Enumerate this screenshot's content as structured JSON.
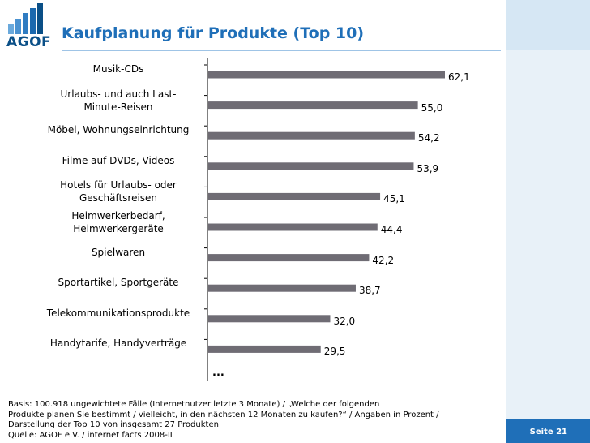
{
  "header": {
    "logo_text": "AGOF",
    "title": "Kaufplanung für Produkte (Top 10)"
  },
  "chart_data": {
    "type": "bar",
    "orientation": "horizontal",
    "categories": [
      "Musik-CDs",
      "Urlaubs- und auch Last-Minute-Reisen",
      "Möbel, Wohnungseinrichtung",
      "Filme auf DVDs, Videos",
      "Hotels für Urlaubs- oder Geschäftsreisen",
      "Heimwerkerbedarf, Heimwerkergeräte",
      "Spielwaren",
      "Sportartikel, Sportgeräte",
      "Telekommunikationsprodukte",
      "Handytarife, Handyverträge"
    ],
    "category_lines": [
      [
        "Musik-CDs"
      ],
      [
        "Urlaubs- und auch Last-",
        "Minute-Reisen"
      ],
      [
        "Möbel, Wohnungseinrichtung"
      ],
      [
        "Filme auf DVDs, Videos"
      ],
      [
        "Hotels für Urlaubs- oder",
        "Geschäftsreisen"
      ],
      [
        "Heimwerkerbedarf,",
        "Heimwerkergeräte"
      ],
      [
        "Spielwaren"
      ],
      [
        "Sportartikel, Sportgeräte"
      ],
      [
        "Telekommunikationsprodukte"
      ],
      [
        "Handytarife, Handyverträge"
      ]
    ],
    "values": [
      62.1,
      55.0,
      54.2,
      53.9,
      45.1,
      44.4,
      42.2,
      38.7,
      32.0,
      29.5
    ],
    "value_labels": [
      "62,1",
      "55,0",
      "54,2",
      "53,9",
      "45,1",
      "44,4",
      "42,2",
      "38,7",
      "32,0",
      "29,5"
    ],
    "xlim": [
      0,
      62.1
    ],
    "bar_color": "#6f6c74",
    "continuation": "..."
  },
  "footer": {
    "basis_lines": [
      "Basis: 100.918 ungewichtete Fälle (Internetnutzer letzte 3 Monate) / „Welche der folgenden",
      "Produkte planen Sie bestimmt / vielleicht, in den nächsten 12 Monaten zu kaufen?“ / Angaben in Prozent /",
      "Darstellung der Top 10 von insgesamt 27 Produkten",
      "Quelle: AGOF e.V. / internet facts 2008-II"
    ],
    "page_label": "Seite 21"
  }
}
